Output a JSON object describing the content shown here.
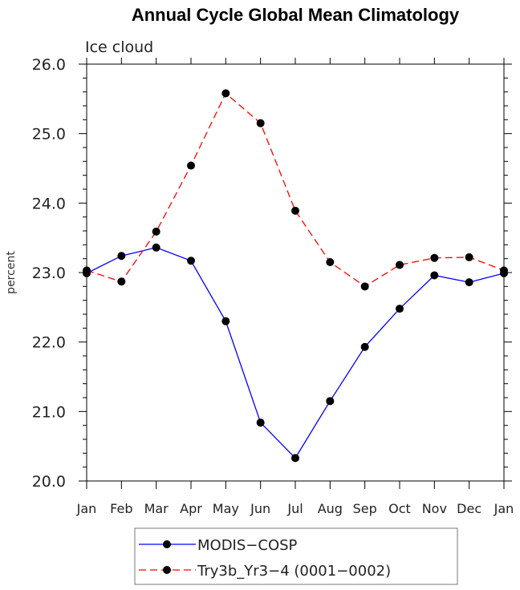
{
  "chart_data": {
    "type": "line",
    "title": "Annual Cycle Global Mean Climatology",
    "subtitle": "Ice cloud",
    "xlabel": "",
    "ylabel": "percent",
    "categories": [
      "Jan",
      "Feb",
      "Mar",
      "Apr",
      "May",
      "Jun",
      "Jul",
      "Aug",
      "Sep",
      "Oct",
      "Nov",
      "Dec",
      "Jan"
    ],
    "ylim": [
      20.0,
      26.0
    ],
    "yticks": [
      "20.0",
      "21.0",
      "22.0",
      "23.0",
      "24.0",
      "25.0",
      "26.0"
    ],
    "grid": false,
    "legend_position": "bottom-center",
    "series": [
      {
        "name": "MODIS−COSP",
        "color": "#0000ff",
        "dash": "solid",
        "values": [
          22.99,
          23.24,
          23.36,
          23.17,
          22.3,
          20.84,
          20.33,
          21.15,
          21.93,
          22.48,
          22.96,
          22.86,
          22.99
        ]
      },
      {
        "name": "Try3b_Yr3−4 (0001−0002)",
        "color": "#ff0000",
        "dash": "dashed",
        "values": [
          23.03,
          22.87,
          23.59,
          24.54,
          25.58,
          25.15,
          23.89,
          23.15,
          22.8,
          23.11,
          23.21,
          23.22,
          23.03
        ]
      }
    ]
  }
}
